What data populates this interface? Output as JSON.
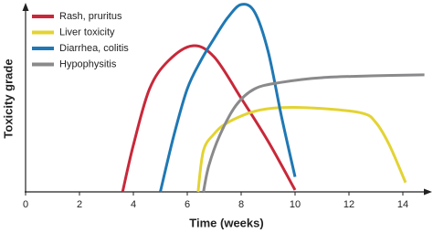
{
  "chart_data": {
    "type": "line",
    "xlabel": "Time (weeks)",
    "ylabel": "Toxicity grade",
    "xlim": [
      0,
      15
    ],
    "xticks": [
      0,
      2,
      4,
      6,
      8,
      10,
      12,
      14
    ],
    "ylim": [
      0,
      100
    ],
    "legend": "upper left",
    "series": [
      {
        "name": "Rash, pruritus",
        "color": "#c8283a",
        "x": [
          3.6,
          4.0,
          4.6,
          5.3,
          6.2,
          7.0,
          8.0,
          9.0,
          10.0
        ],
        "values": [
          0,
          25,
          55,
          70,
          78,
          72,
          50,
          27,
          1
        ]
      },
      {
        "name": "Liver toxicity",
        "color": "#e3d332",
        "x": [
          6.4,
          6.6,
          7.0,
          7.5,
          8.5,
          9.5,
          11.0,
          12.5,
          13.0,
          13.5,
          14.1
        ],
        "values": [
          0,
          22,
          31,
          37,
          43,
          45,
          44.5,
          42,
          37,
          25,
          5
        ]
      },
      {
        "name": "Diarrhea, colitis",
        "color": "#1f78b4",
        "x": [
          5.0,
          5.5,
          6.0,
          6.5,
          7.0,
          7.5,
          8.0,
          8.5,
          9.0,
          9.5,
          10.0
        ],
        "values": [
          0,
          30,
          55,
          70,
          82,
          93,
          100,
          96,
          75,
          40,
          8
        ]
      },
      {
        "name": "Hypophysitis",
        "color": "#8a8a8c",
        "x": [
          6.6,
          6.8,
          7.2,
          7.8,
          8.5,
          9.5,
          11.0,
          13.0,
          14.8
        ],
        "values": [
          0,
          14,
          30,
          46,
          55,
          58.5,
          61,
          62,
          62.5
        ]
      }
    ]
  }
}
